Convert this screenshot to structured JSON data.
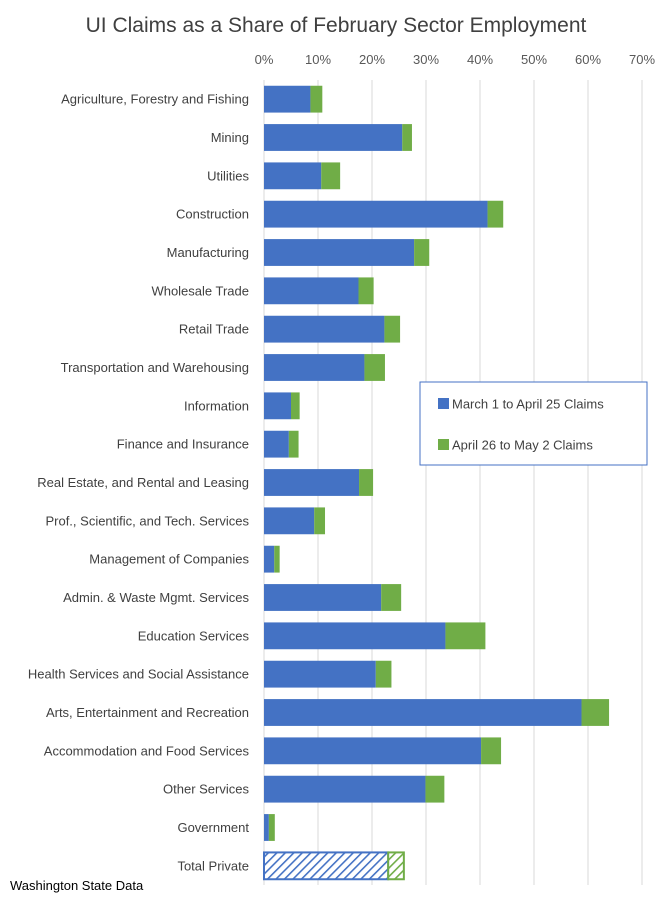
{
  "chart_data": {
    "type": "bar",
    "orientation": "horizontal",
    "stacked": true,
    "title": "UI Claims as a Share of February Sector Employment",
    "xlabel": "",
    "ylabel": "",
    "xlim": [
      0,
      70
    ],
    "x_ticks": [
      "0%",
      "10%",
      "20%",
      "30%",
      "40%",
      "50%",
      "60%",
      "70%"
    ],
    "grid": true,
    "legend_position": "right-middle",
    "categories": [
      "Agriculture, Forestry and Fishing",
      "Mining",
      "Utilities",
      "Construction",
      "Manufacturing",
      "Wholesale Trade",
      "Retail Trade",
      "Transportation and Warehousing",
      "Information",
      "Finance and Insurance",
      "Real Estate, and Rental and Leasing",
      "Prof., Scientific, and Tech. Services",
      "Management of Companies",
      "Admin. & Waste Mgmt. Services",
      "Education Services",
      "Health Services and Social Assistance",
      "Arts, Entertainment and Recreation",
      "Accommodation and Food Services",
      "Other Services",
      "Government",
      "Total Private"
    ],
    "series": [
      {
        "name": "March 1 to  April 25 Claims",
        "color": "#4472C4",
        "values": [
          8.6,
          25.6,
          10.6,
          41.4,
          27.8,
          17.5,
          22.3,
          18.6,
          5.0,
          4.6,
          17.6,
          9.3,
          1.9,
          21.7,
          33.6,
          20.7,
          58.8,
          40.2,
          29.9,
          0.9,
          23.0
        ]
      },
      {
        "name": "April 26 to  May 2 Claims",
        "color": "#70AD47",
        "values": [
          2.2,
          1.8,
          3.5,
          2.9,
          2.8,
          2.8,
          2.9,
          3.8,
          1.6,
          1.8,
          2.6,
          2.0,
          1.0,
          3.7,
          7.4,
          2.9,
          5.1,
          3.7,
          3.5,
          1.1,
          2.9
        ]
      }
    ],
    "hatched_category": "Total Private",
    "source_note": "Washington State Data"
  }
}
